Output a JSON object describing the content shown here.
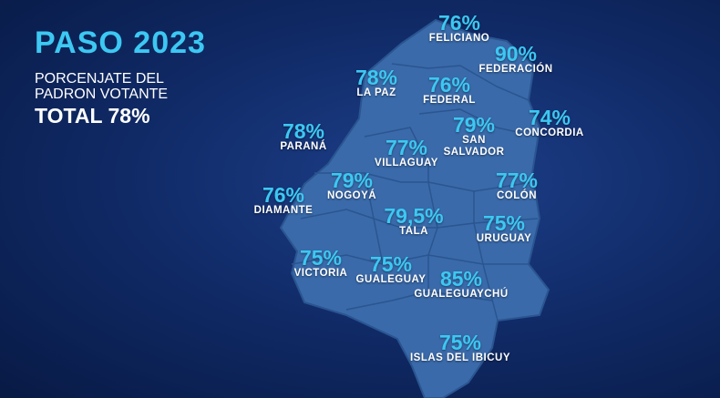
{
  "header": {
    "title": "PASO 2023",
    "subtitle_lines": [
      "PORCENJATE DEL",
      "PADRON VOTANTE"
    ],
    "total": "TOTAL 78%"
  },
  "regions": [
    {
      "name": "FELICIANO",
      "value": "76%"
    },
    {
      "name": "FEDERACIÓN",
      "value": "90%"
    },
    {
      "name": "LA PAZ",
      "value": "78%"
    },
    {
      "name": "FEDERAL",
      "value": "76%"
    },
    {
      "name": "PARANÁ",
      "value": "78%"
    },
    {
      "name": "SAN SALVADOR",
      "value": "79%"
    },
    {
      "name": "CONCORDIA",
      "value": "74%"
    },
    {
      "name": "VILLAGUAY",
      "value": "77%"
    },
    {
      "name": "NOGOYÁ",
      "value": "79%"
    },
    {
      "name": "COLÓN",
      "value": "77%"
    },
    {
      "name": "DIAMANTE",
      "value": "76%"
    },
    {
      "name": "TALA",
      "value": "79,5%"
    },
    {
      "name": "URUGUAY",
      "value": "75%"
    },
    {
      "name": "VICTORIA",
      "value": "75%"
    },
    {
      "name": "GUALEGUAY",
      "value": "75%"
    },
    {
      "name": "GUALEGUAYCHÚ",
      "value": "85%"
    },
    {
      "name": "ISLAS DEL IBICUY",
      "value": "75%"
    }
  ]
}
